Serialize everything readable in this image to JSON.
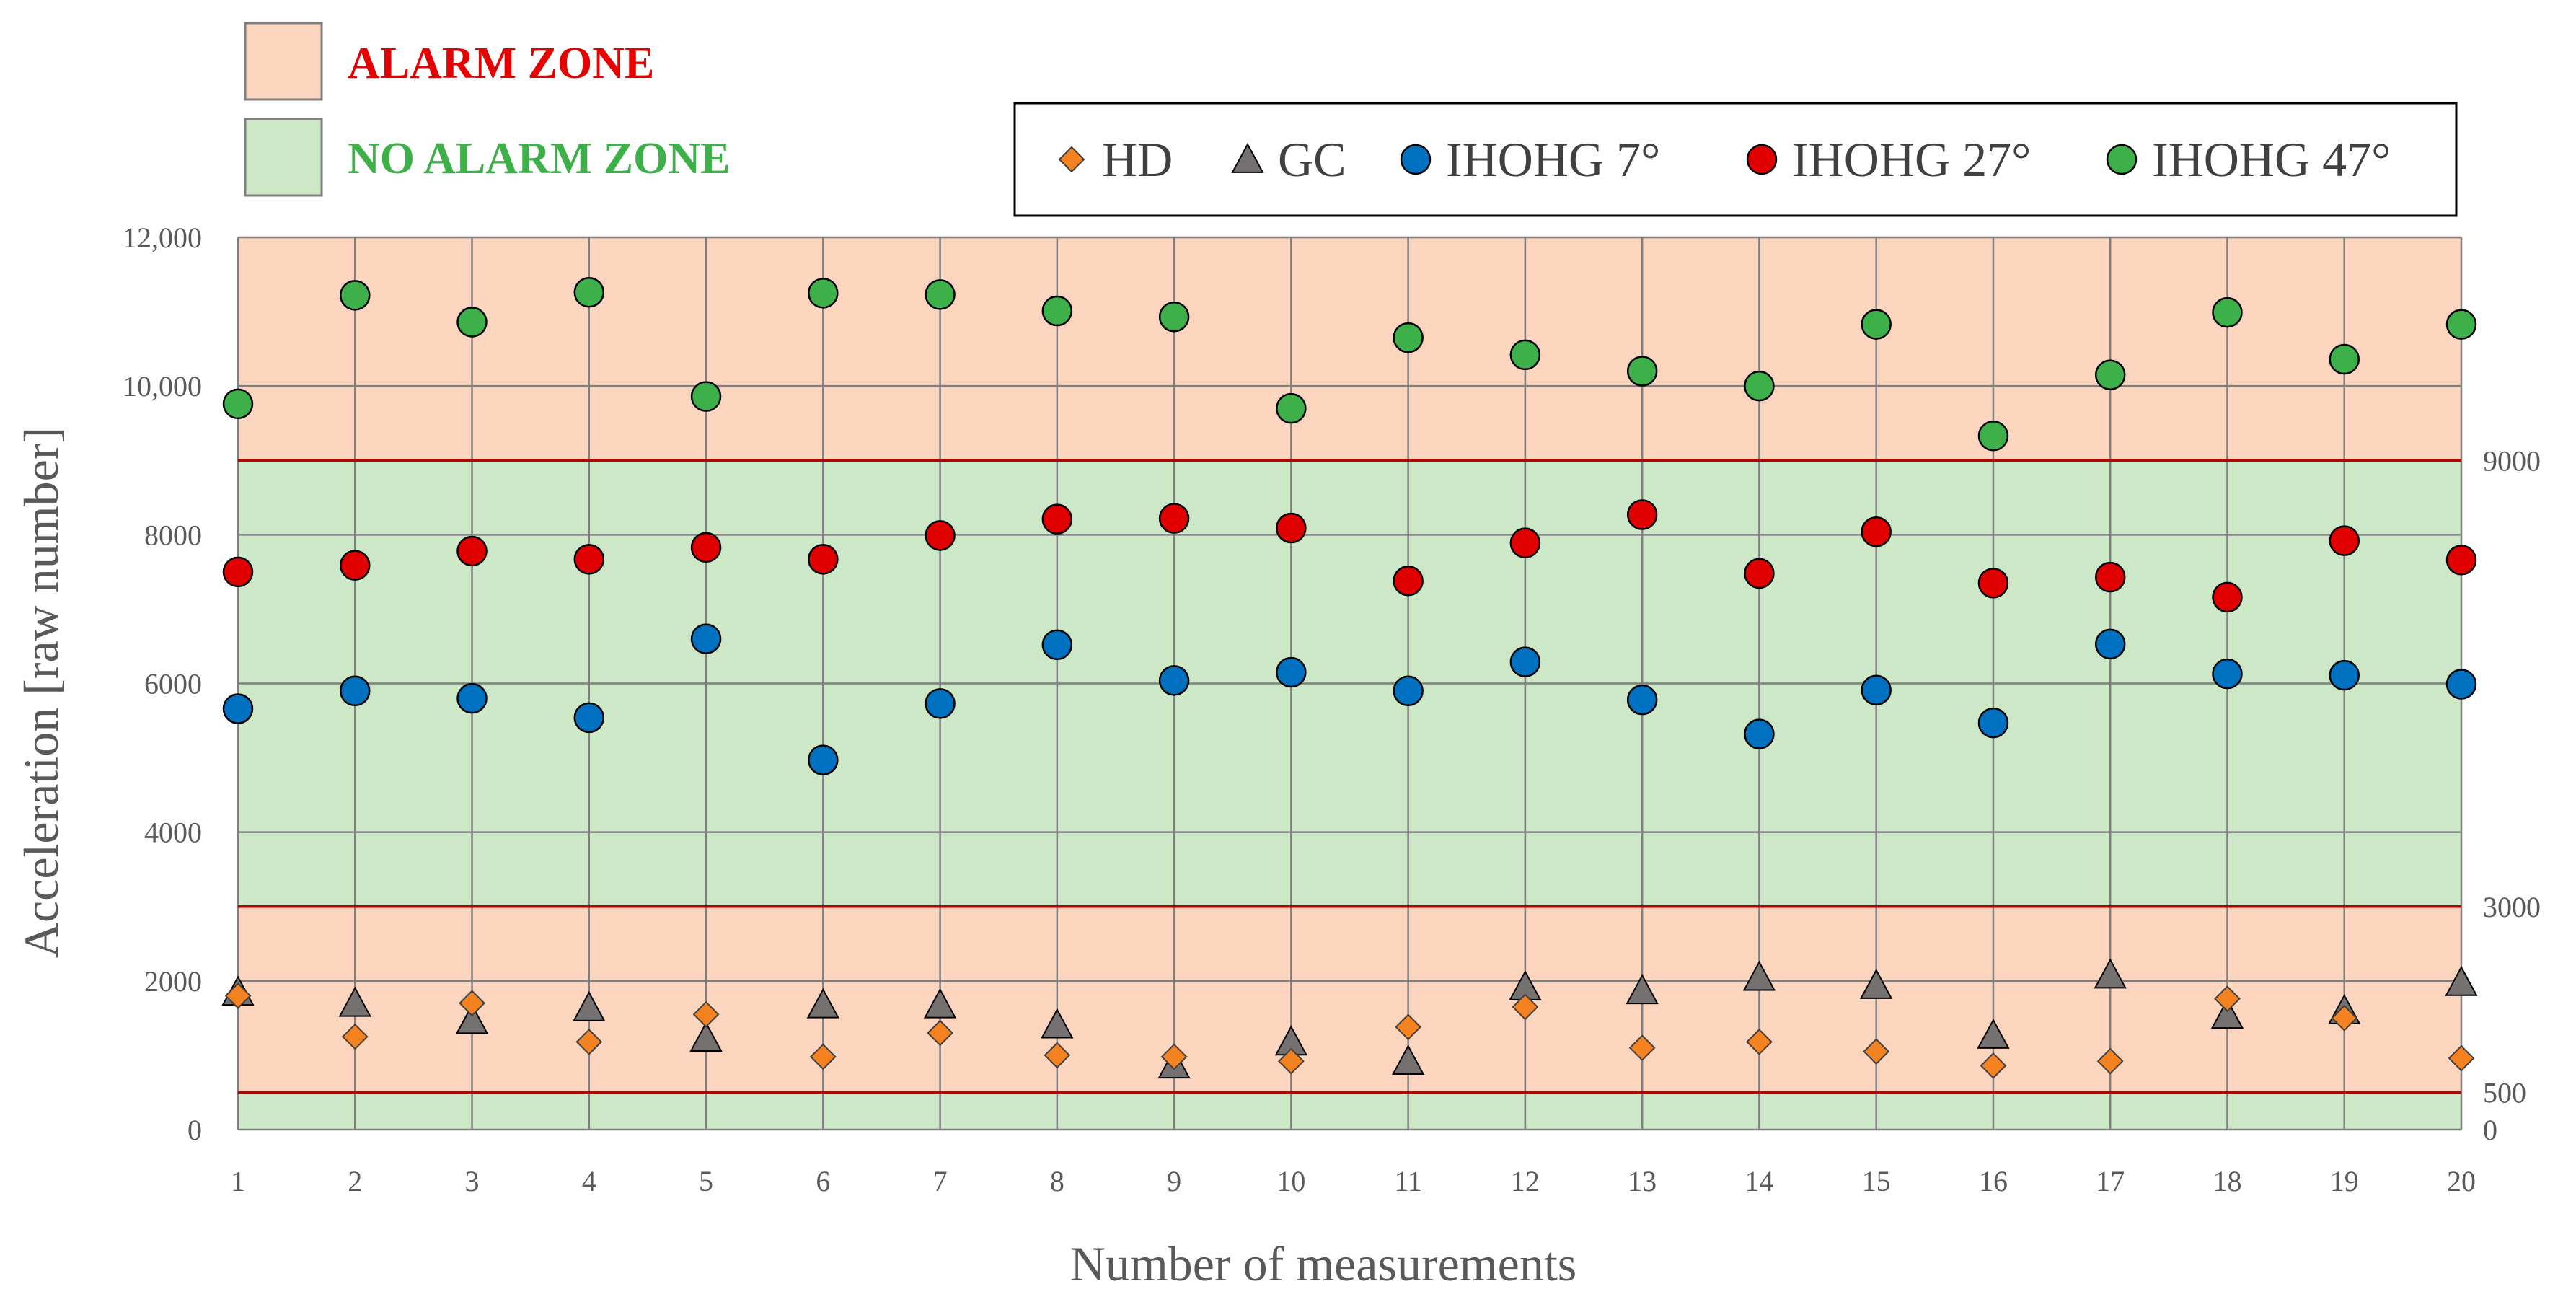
{
  "zones_legend": {
    "alarm_label": "ALARM ZONE",
    "no_alarm_label": "NO ALARM ZONE",
    "alarm_color": "#FCD5BF",
    "no_alarm_color": "#CDE8C6",
    "alarm_text_color": "#E60000",
    "no_alarm_text_color": "#3EB049"
  },
  "chart_data": {
    "type": "scatter",
    "xlabel": "Number of measurements",
    "ylabel": "Acceleration [raw number]",
    "x": [
      1,
      2,
      3,
      4,
      5,
      6,
      7,
      8,
      9,
      10,
      11,
      12,
      13,
      14,
      15,
      16,
      17,
      18,
      19,
      20
    ],
    "xlim": [
      1,
      20
    ],
    "ylim": [
      0,
      12000
    ],
    "y_ticks": [
      0,
      2000,
      4000,
      6000,
      8000,
      10000,
      12000
    ],
    "y_tick_labels": [
      "0",
      "2000",
      "4000",
      "6000",
      "8000",
      "10,000",
      "12,000"
    ],
    "grid": true,
    "legend_position": "top-right",
    "zones": [
      {
        "type": "no_alarm",
        "from": 0,
        "to": 500
      },
      {
        "type": "alarm",
        "from": 500,
        "to": 3000
      },
      {
        "type": "no_alarm",
        "from": 3000,
        "to": 9000
      },
      {
        "type": "alarm",
        "from": 9000,
        "to": 12000
      }
    ],
    "threshold_lines": [
      {
        "value": 500,
        "label": "500"
      },
      {
        "value": 3000,
        "label": "3000"
      },
      {
        "value": 9000,
        "label": "9000"
      }
    ],
    "threshold_zero_label": "0",
    "threshold_color": "#C00000",
    "series": [
      {
        "name": "HD",
        "marker": "diamond",
        "color": "#F58220",
        "values": [
          1800,
          1250,
          1700,
          1180,
          1550,
          980,
          1300,
          1000,
          980,
          920,
          1380,
          1650,
          1100,
          1180,
          1050,
          860,
          920,
          1760,
          1500,
          960
        ]
      },
      {
        "name": "GC",
        "marker": "triangle",
        "color": "#767171",
        "values": [
          1850,
          1700,
          1470,
          1640,
          1230,
          1680,
          1680,
          1410,
          870,
          1180,
          920,
          1920,
          1870,
          2050,
          1940,
          1270,
          2080,
          1540,
          1600,
          1980
        ]
      },
      {
        "name": "IHOHG 7°",
        "marker": "circle",
        "color": "#0070C0",
        "values": [
          5660,
          5900,
          5800,
          5540,
          6600,
          4970,
          5730,
          6520,
          6040,
          6150,
          5900,
          6290,
          5780,
          5320,
          5910,
          5470,
          6530,
          6130,
          6110,
          5990
        ]
      },
      {
        "name": "IHOHG 27°",
        "marker": "circle",
        "color": "#E00000",
        "values": [
          7500,
          7590,
          7780,
          7670,
          7830,
          7670,
          7990,
          8210,
          8220,
          8090,
          7380,
          7890,
          8270,
          7480,
          8040,
          7350,
          7430,
          7160,
          7920,
          7660
        ]
      },
      {
        "name": "IHOHG 47°",
        "marker": "circle",
        "color": "#3EB049",
        "values": [
          9760,
          11220,
          10860,
          11260,
          9860,
          11250,
          11230,
          11010,
          10930,
          9700,
          10650,
          10420,
          10200,
          10000,
          10830,
          9330,
          10150,
          10990,
          10360,
          10830
        ]
      }
    ]
  }
}
